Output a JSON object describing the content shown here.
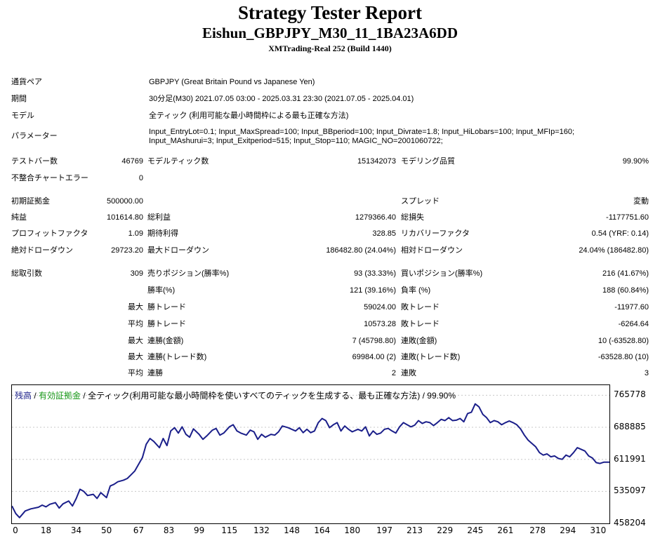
{
  "header": {
    "title": "Strategy Tester Report",
    "subtitle": "Eishun_GBPJPY_M30_11_1BA23A6DD",
    "server": "XMTrading-Real 252 (Build 1440)"
  },
  "info": {
    "pair_label": "通貨ペア",
    "pair_value": "GBPJPY (Great Britain Pound vs Japanese Yen)",
    "period_label": "期間",
    "period_value": "30分足(M30) 2021.07.05 03:00 - 2025.03.31 23:30 (2021.07.05 - 2025.04.01)",
    "model_label": "モデル",
    "model_value": "全ティック (利用可能な最小時間枠による最も正確な方法)",
    "params_label": "パラメーター",
    "params_line1": "Input_EntryLot=0.1; Input_MaxSpread=100; Input_BBperiod=100; Input_Divrate=1.8; Input_HiLobars=100; Input_MFIp=160;",
    "params_line2": "Input_MAshurui=3; Input_Exitperiod=515; Input_Stop=110; MAGIC_NO=2001060722;"
  },
  "stats": {
    "bars_label": "テストバー数",
    "bars_value": "46769",
    "ticks_label": "モデルティック数",
    "ticks_value": "151342073",
    "quality_label": "モデリング品質",
    "quality_value": "99.90%",
    "mismatch_label": "不整合チャートエラー",
    "mismatch_value": "0",
    "deposit_label": "初期証拠金",
    "deposit_value": "500000.00",
    "spread_label": "スプレッド",
    "spread_value": "変動",
    "net_label": "純益",
    "net_value": "101614.80",
    "gross_profit_label": "総利益",
    "gross_profit_value": "1279366.40",
    "gross_loss_label": "総損失",
    "gross_loss_value": "-1177751.60",
    "pf_label": "プロフィットファクタ",
    "pf_value": "1.09",
    "expected_label": "期待利得",
    "expected_value": "328.85",
    "recovery_label": "リカバリーファクタ",
    "recovery_value": "0.54 (YRF: 0.14)",
    "abs_dd_label": "絶対ドローダウン",
    "abs_dd_value": "29723.20",
    "max_dd_label": "最大ドローダウン",
    "max_dd_value": "186482.80 (24.04%)",
    "rel_dd_label": "相対ドローダウン",
    "rel_dd_value": "24.04% (186482.80)",
    "trades_label": "総取引数",
    "trades_value": "309",
    "short_label": "売りポジション(勝率%)",
    "short_value": "93 (33.33%)",
    "long_label": "買いポジション(勝率%)",
    "long_value": "216 (41.67%)",
    "winrate_label": "勝率(%)",
    "winrate_value": "121 (39.16%)",
    "lossrate_label": "負率 (%)",
    "lossrate_value": "188 (60.84%)",
    "max_label": "最大",
    "avg_label": "平均",
    "win_trade_label": "勝トレード",
    "loss_trade_label": "敗トレード",
    "largest_win": "59024.00",
    "largest_loss": "-11977.60",
    "avg_win": "10573.28",
    "avg_loss": "-6264.64",
    "consec_win_amt_label": "連勝(金額)",
    "consec_win_amt": "7 (45798.80)",
    "consec_loss_amt_label": "連敗(金額)",
    "consec_loss_amt": "10 (-63528.80)",
    "consec_win_trade_label": "連勝(トレード数)",
    "consec_win_trade": "69984.00 (2)",
    "consec_loss_trade_label": "連敗(トレード数)",
    "consec_loss_trade": "-63528.80 (10)",
    "avg_consec_win_label": "連勝",
    "avg_consec_win": "2",
    "avg_consec_loss_label": "連敗",
    "avg_consec_loss": "3"
  },
  "legend": {
    "balance": "残高",
    "sep1": " / ",
    "equity": "有効証拠金",
    "sep2": " / ",
    "desc": "全ティック(利用可能な最小時間枠を使いすべてのティックを生成する、最も正確な方法) / 99.90%"
  },
  "colors": {
    "balance": "#1b1f8a",
    "legend_balance": "#1b1f8a",
    "legend_equity": "#1a9a1a",
    "grid": "#c8c8c8"
  },
  "chart_data": {
    "type": "line",
    "ylim": [
      458204,
      790000
    ],
    "y_ticks": [
      "765778",
      "688885",
      "611991",
      "535097",
      "458204"
    ],
    "x_ticks": [
      "0",
      "18",
      "34",
      "50",
      "67",
      "83",
      "99",
      "115",
      "132",
      "148",
      "164",
      "180",
      "197",
      "213",
      "229",
      "245",
      "261",
      "278",
      "294",
      "310"
    ],
    "x_max": 316,
    "series": [
      {
        "values": [
          [
            0,
            500000
          ],
          [
            2,
            482000
          ],
          [
            4,
            472000
          ],
          [
            7,
            488000
          ],
          [
            10,
            493000
          ],
          [
            14,
            497000
          ],
          [
            16,
            502000
          ],
          [
            18,
            498000
          ],
          [
            20,
            504000
          ],
          [
            23,
            508000
          ],
          [
            25,
            495000
          ],
          [
            27,
            505000
          ],
          [
            30,
            512000
          ],
          [
            32,
            500000
          ],
          [
            34,
            518000
          ],
          [
            36,
            540000
          ],
          [
            38,
            535000
          ],
          [
            40,
            525000
          ],
          [
            43,
            528000
          ],
          [
            45,
            518000
          ],
          [
            47,
            532000
          ],
          [
            50,
            520000
          ],
          [
            52,
            548000
          ],
          [
            54,
            552000
          ],
          [
            56,
            558000
          ],
          [
            59,
            562000
          ],
          [
            61,
            566000
          ],
          [
            63,
            575000
          ],
          [
            65,
            584000
          ],
          [
            67,
            600000
          ],
          [
            69,
            616000
          ],
          [
            71,
            648000
          ],
          [
            73,
            662000
          ],
          [
            75,
            655000
          ],
          [
            78,
            640000
          ],
          [
            80,
            662000
          ],
          [
            82,
            645000
          ],
          [
            84,
            680000
          ],
          [
            86,
            688000
          ],
          [
            88,
            675000
          ],
          [
            90,
            690000
          ],
          [
            92,
            672000
          ],
          [
            94,
            665000
          ],
          [
            96,
            685000
          ],
          [
            99,
            672000
          ],
          [
            101,
            660000
          ],
          [
            103,
            668000
          ],
          [
            106,
            682000
          ],
          [
            108,
            686000
          ],
          [
            110,
            670000
          ],
          [
            112,
            675000
          ],
          [
            115,
            690000
          ],
          [
            117,
            695000
          ],
          [
            119,
            680000
          ],
          [
            121,
            675000
          ],
          [
            124,
            670000
          ],
          [
            126,
            682000
          ],
          [
            128,
            678000
          ],
          [
            130,
            660000
          ],
          [
            132,
            672000
          ],
          [
            134,
            665000
          ],
          [
            137,
            672000
          ],
          [
            139,
            670000
          ],
          [
            141,
            678000
          ],
          [
            143,
            692000
          ],
          [
            146,
            688000
          ],
          [
            148,
            684000
          ],
          [
            150,
            680000
          ],
          [
            152,
            688000
          ],
          [
            154,
            676000
          ],
          [
            156,
            684000
          ],
          [
            158,
            676000
          ],
          [
            160,
            680000
          ],
          [
            162,
            700000
          ],
          [
            164,
            710000
          ],
          [
            166,
            705000
          ],
          [
            168,
            688000
          ],
          [
            170,
            695000
          ],
          [
            172,
            700000
          ],
          [
            174,
            680000
          ],
          [
            176,
            692000
          ],
          [
            178,
            684000
          ],
          [
            180,
            678000
          ],
          [
            183,
            684000
          ],
          [
            185,
            680000
          ],
          [
            187,
            690000
          ],
          [
            189,
            668000
          ],
          [
            191,
            680000
          ],
          [
            193,
            672000
          ],
          [
            195,
            675000
          ],
          [
            197,
            684000
          ],
          [
            199,
            686000
          ],
          [
            201,
            680000
          ],
          [
            203,
            675000
          ],
          [
            205,
            690000
          ],
          [
            207,
            700000
          ],
          [
            209,
            695000
          ],
          [
            211,
            690000
          ],
          [
            213,
            694000
          ],
          [
            215,
            705000
          ],
          [
            217,
            698000
          ],
          [
            219,
            702000
          ],
          [
            221,
            700000
          ],
          [
            223,
            693000
          ],
          [
            225,
            700000
          ],
          [
            227,
            708000
          ],
          [
            229,
            705000
          ],
          [
            231,
            712000
          ],
          [
            233,
            705000
          ],
          [
            235,
            706000
          ],
          [
            237,
            710000
          ],
          [
            239,
            702000
          ],
          [
            241,
            722000
          ],
          [
            243,
            725000
          ],
          [
            245,
            745000
          ],
          [
            247,
            738000
          ],
          [
            249,
            720000
          ],
          [
            251,
            712000
          ],
          [
            253,
            700000
          ],
          [
            255,
            705000
          ],
          [
            257,
            702000
          ],
          [
            259,
            695000
          ],
          [
            261,
            700000
          ],
          [
            263,
            704000
          ],
          [
            265,
            700000
          ],
          [
            267,
            695000
          ],
          [
            269,
            685000
          ],
          [
            271,
            670000
          ],
          [
            273,
            658000
          ],
          [
            275,
            650000
          ],
          [
            277,
            642000
          ],
          [
            279,
            628000
          ],
          [
            281,
            622000
          ],
          [
            283,
            625000
          ],
          [
            285,
            618000
          ],
          [
            287,
            620000
          ],
          [
            289,
            614000
          ],
          [
            291,
            612000
          ],
          [
            293,
            622000
          ],
          [
            295,
            618000
          ],
          [
            297,
            628000
          ],
          [
            299,
            640000
          ],
          [
            301,
            636000
          ],
          [
            303,
            632000
          ],
          [
            305,
            620000
          ],
          [
            307,
            615000
          ],
          [
            309,
            604000
          ],
          [
            311,
            602000
          ],
          [
            313,
            605000
          ],
          [
            316,
            605000
          ]
        ]
      }
    ]
  }
}
